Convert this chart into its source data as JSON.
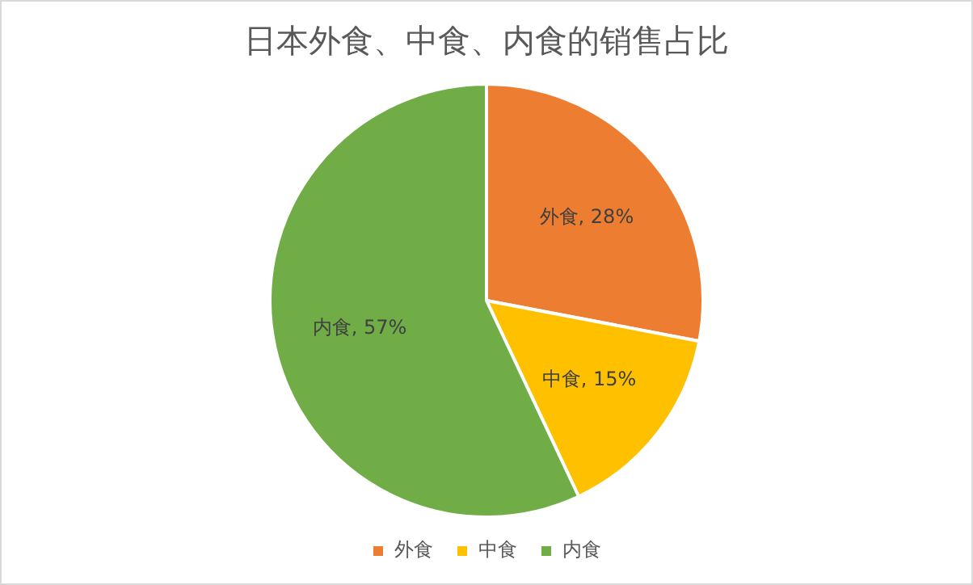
{
  "chart_data": {
    "type": "pie",
    "title": "日本外食、中食、内食的销售占比",
    "categories": [
      "外食",
      "中食",
      "内食"
    ],
    "values": [
      28,
      15,
      57
    ],
    "colors": [
      "#ed7d31",
      "#ffc000",
      "#70ad47"
    ],
    "value_labels": [
      "外食, 28%",
      "中食, 15%",
      "内食, 57%"
    ],
    "legend": "bottom"
  }
}
